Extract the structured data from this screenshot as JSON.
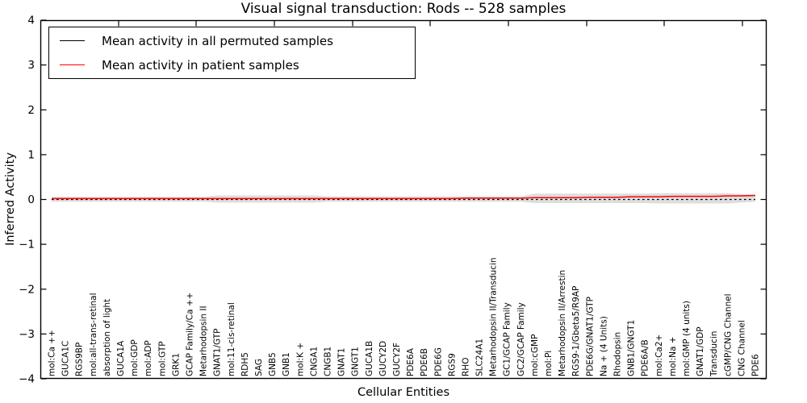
{
  "chart_data": {
    "type": "line",
    "title": "Visual signal transduction: Rods -- 528 samples",
    "xlabel": "Cellular Entities",
    "ylabel": "Inferred Activity",
    "ylim": [
      -4,
      4
    ],
    "yticks": [
      4,
      3,
      2,
      1,
      0,
      -1,
      -2,
      -3,
      -4
    ],
    "grid": false,
    "legend_position": "upper left",
    "categories": [
      "mol:Ca ++",
      "GUCA1C",
      "RGS9BP",
      "mol:all-trans-retinal",
      "absorption of light",
      "GUCA1A",
      "mol:GDP",
      "mol:ADP",
      "mol:GTP",
      "GRK1",
      "GCAP Family/Ca ++",
      "Metarhodopsin II",
      "GNAT1/GTP",
      "mol:11-cis-retinal",
      "RDH5",
      "SAG",
      "GNB5",
      "GNB1",
      "mol:K +",
      "CNGA1",
      "CNGB1",
      "GNAT1",
      "GNGT1",
      "GUCA1B",
      "GUCY2D",
      "GUCY2F",
      "PDE6A",
      "PDE6B",
      "PDE6G",
      "RGS9",
      "RHO",
      "SLC24A1",
      "Metarhodopsin II/Transducin",
      "GC1/GCAP Family",
      "GC2/GCAP Family",
      "mol:cGMP",
      "mol:Pi",
      "Metarhodopsin II/Arrestin",
      "RGS9-1/Gbeta5/R9AP",
      "PDE6G/GNAT1/GTP",
      "Na + (4 Units)",
      "Rhodopsin",
      "GNB1/GNGT1",
      "PDE6A/B",
      "mol:Ca2+",
      "mol:Na +",
      "mol:GMP (4 units)",
      "GNAT1/GDP",
      "Transducin",
      "cGMP/CNG Channel",
      "CNG Channel",
      "PDE6"
    ],
    "series": [
      {
        "name": "Mean activity in all permuted samples",
        "color": "#000000",
        "line_style": "dashed",
        "values": [
          0,
          0,
          0,
          0,
          0,
          0,
          0,
          0,
          0,
          0,
          0,
          0,
          0,
          0,
          0,
          0,
          0,
          0,
          0,
          0,
          0,
          0,
          0,
          0,
          0,
          0,
          0,
          0,
          0,
          0,
          0,
          0,
          0,
          0,
          0,
          0,
          0,
          0,
          0,
          0,
          0,
          0,
          0,
          0,
          0,
          0,
          0,
          0,
          0,
          0,
          0,
          0
        ]
      },
      {
        "name": "Mean activity in patient samples",
        "color": "#ff0000",
        "line_style": "solid",
        "values": [
          0.02,
          0.02,
          0.02,
          0.02,
          0.02,
          0.02,
          0.02,
          0.02,
          0.02,
          0.02,
          0.02,
          0.02,
          0.02,
          0.02,
          0.02,
          0.02,
          0.02,
          0.02,
          0.02,
          0.02,
          0.02,
          0.02,
          0.02,
          0.02,
          0.02,
          0.02,
          0.02,
          0.02,
          0.02,
          0.02,
          0.03,
          0.03,
          0.03,
          0.03,
          0.03,
          0.04,
          0.04,
          0.04,
          0.04,
          0.05,
          0.05,
          0.05,
          0.06,
          0.06,
          0.06,
          0.07,
          0.07,
          0.07,
          0.07,
          0.08,
          0.08,
          0.09
        ]
      }
    ],
    "band": {
      "label": "permuted samples spread band",
      "color": "#dedede",
      "upper": [
        0.06,
        0.06,
        0.06,
        0.06,
        0.06,
        0.06,
        0.06,
        0.06,
        0.06,
        0.06,
        0.06,
        0.06,
        0.09,
        0.09,
        0.09,
        0.09,
        0.09,
        0.09,
        0.09,
        0.09,
        0.07,
        0.07,
        0.07,
        0.07,
        0.07,
        0.07,
        0.07,
        0.07,
        0.07,
        0.07,
        0.07,
        0.07,
        0.07,
        0.07,
        0.07,
        0.13,
        0.13,
        0.13,
        0.13,
        0.13,
        0.13,
        0.13,
        0.13,
        0.13,
        0.14,
        0.14,
        0.14,
        0.14,
        0.14,
        0.14,
        0.12,
        0.11
      ],
      "lower": [
        -0.05,
        -0.05,
        -0.05,
        -0.05,
        -0.05,
        -0.05,
        -0.05,
        -0.05,
        -0.05,
        -0.05,
        -0.05,
        -0.05,
        -0.07,
        -0.07,
        -0.07,
        -0.07,
        -0.07,
        -0.07,
        -0.07,
        -0.07,
        -0.05,
        -0.05,
        -0.05,
        -0.05,
        -0.05,
        -0.05,
        -0.05,
        -0.05,
        -0.05,
        -0.05,
        -0.05,
        -0.05,
        -0.05,
        -0.05,
        -0.05,
        -0.08,
        -0.08,
        -0.08,
        -0.08,
        -0.08,
        -0.08,
        -0.08,
        -0.08,
        -0.08,
        -0.09,
        -0.09,
        -0.09,
        -0.09,
        -0.09,
        -0.09,
        -0.07,
        -0.05
      ]
    }
  },
  "colors": {
    "frame": "#000000",
    "background": "#ffffff"
  }
}
